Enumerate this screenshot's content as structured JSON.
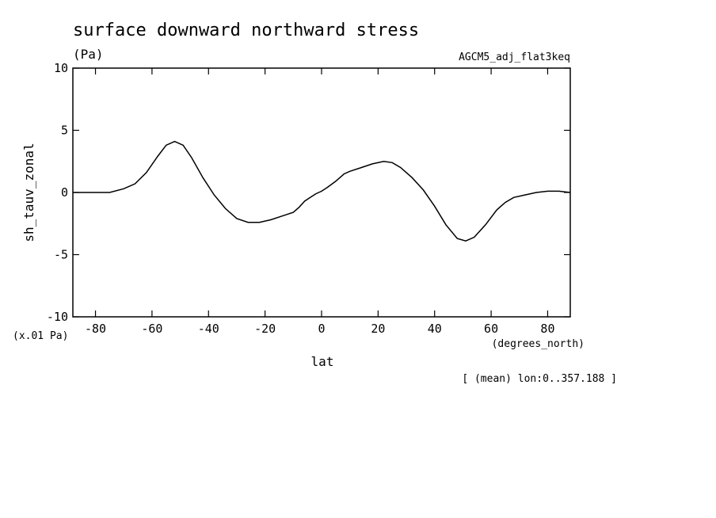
{
  "chart_data": {
    "type": "line",
    "title": "surface downward northward stress",
    "units": "(Pa)",
    "dataset": "AGCM5_adj_flat3keq",
    "ylabel": "sh_tauv_zonal",
    "xlabel": "lat",
    "x_units": "(degrees_north)",
    "y_scale_note": "(x.01 Pa)",
    "footnote": "[ (mean) lon:0..357.188 ]",
    "xlim": [
      -88,
      88
    ],
    "ylim": [
      -10,
      10
    ],
    "x_ticks": [
      -80,
      -60,
      -40,
      -20,
      0,
      20,
      40,
      60,
      80
    ],
    "x_tick_labels": [
      "-80",
      "-60",
      "-40",
      "-20",
      "0",
      "20",
      "40",
      "60",
      "80"
    ],
    "y_ticks": [
      10,
      5,
      0,
      -5,
      -10
    ],
    "y_tick_labels": [
      "10",
      "5",
      "0",
      "-5",
      "-10"
    ],
    "grid": false,
    "line_color": "#000000",
    "series": [
      {
        "x": [
          -88,
          -75,
          -70,
          -66,
          -62,
          -58,
          -55,
          -52,
          -49,
          -46,
          -42,
          -38,
          -34,
          -30,
          -26,
          -22,
          -18,
          -14,
          -10,
          -8,
          -6,
          -4,
          -2,
          0,
          2,
          5,
          8,
          10,
          14,
          18,
          22,
          25,
          28,
          32,
          36,
          40,
          44,
          48,
          51,
          54,
          58,
          62,
          65,
          68,
          72,
          76,
          80,
          84,
          88
        ],
        "y": [
          0,
          0,
          0.3,
          0.7,
          1.6,
          2.9,
          3.8,
          4.1,
          3.8,
          2.8,
          1.2,
          -0.2,
          -1.3,
          -2.1,
          -2.4,
          -2.4,
          -2.2,
          -1.9,
          -1.6,
          -1.2,
          -0.7,
          -0.4,
          -0.1,
          0.1,
          0.4,
          0.9,
          1.5,
          1.7,
          2.0,
          2.3,
          2.5,
          2.4,
          2.0,
          1.2,
          0.2,
          -1.1,
          -2.6,
          -3.7,
          -3.9,
          -3.6,
          -2.6,
          -1.4,
          -0.8,
          -0.4,
          -0.2,
          0.0,
          0.1,
          0.1,
          0.0
        ]
      }
    ]
  }
}
